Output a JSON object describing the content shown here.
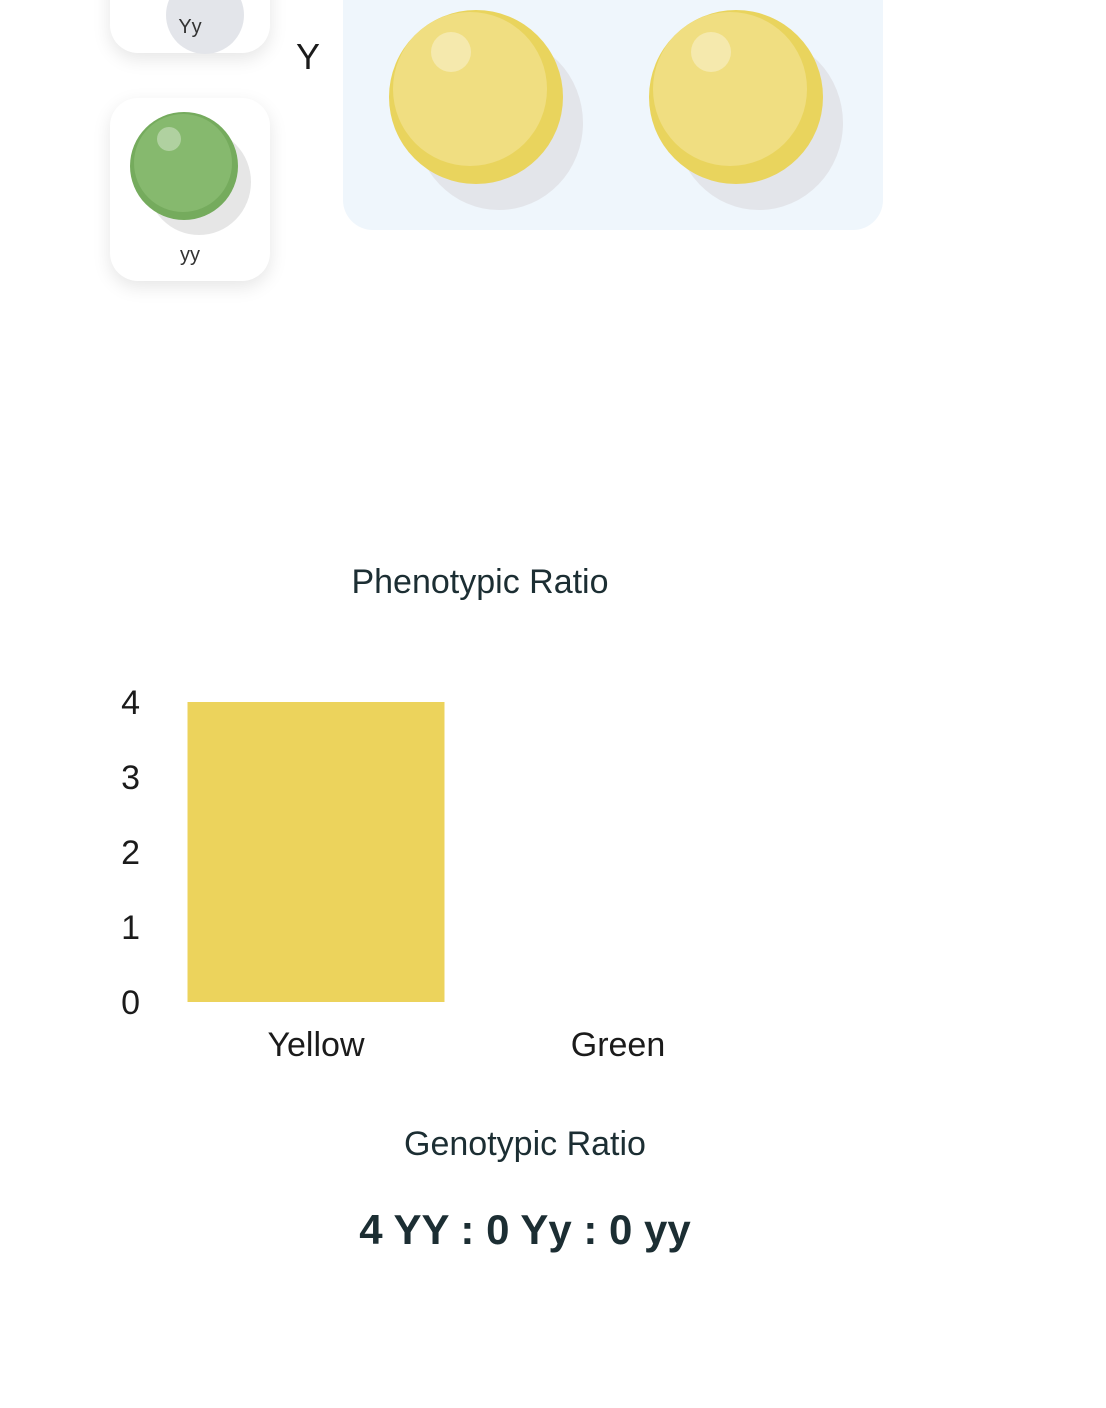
{
  "legend": {
    "items": [
      {
        "genotype": "Yy",
        "color": "#ecd35c"
      },
      {
        "genotype": "yy",
        "color": "#7fb567"
      }
    ]
  },
  "punnett": {
    "row_label": "Y",
    "offspring": [
      {
        "color": "#ecd35c"
      },
      {
        "color": "#ecd35c"
      }
    ]
  },
  "phenotypic": {
    "title": "Phenotypic Ratio"
  },
  "genotypic": {
    "title": "Genotypic Ratio",
    "value": "4 YY : 0 Yy : 0 yy"
  },
  "chart_data": {
    "type": "bar",
    "title": "Phenotypic Ratio",
    "categories": [
      "Yellow",
      "Green"
    ],
    "values": [
      4,
      0
    ],
    "colors": [
      "#ecd35c",
      "#7fb567"
    ],
    "ylim": [
      0,
      4
    ],
    "yticks": [
      0,
      1,
      2,
      3,
      4
    ],
    "grid": false,
    "xlabel": "",
    "ylabel": ""
  }
}
